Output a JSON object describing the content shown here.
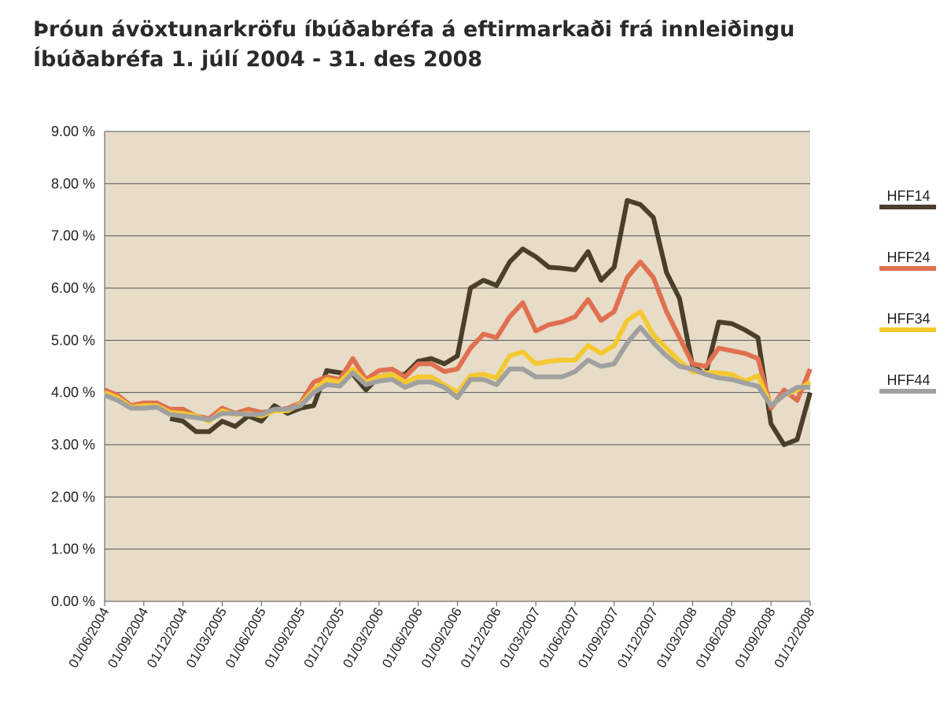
{
  "chart_data": {
    "type": "line",
    "title": [
      "Þróun ávöxtunarkröfu íbúðabréfa á eftirmarkaði frá innleiðingu",
      "Íbúðabréfa 1. júlí 2004 - 31. des 2008"
    ],
    "categories": [
      "01/06/2004",
      null,
      null,
      "01/09/2004",
      null,
      null,
      "01/12/2004",
      null,
      null,
      "01/03/2005",
      null,
      null,
      "01/06/2005",
      null,
      null,
      "01/09/2005",
      null,
      null,
      "01/12/2005",
      null,
      null,
      "01/03/2006",
      null,
      null,
      "01/06/2006",
      null,
      null,
      "01/09/2006",
      null,
      null,
      "01/12/2006",
      null,
      null,
      "01/03/2007",
      null,
      null,
      "01/06/2007",
      null,
      null,
      "01/09/2007",
      null,
      null,
      "01/12/2007",
      null,
      null,
      "01/03/2008",
      null,
      null,
      "01/06/2008",
      null,
      null,
      "01/09/2008",
      null,
      null,
      "01/12/2008"
    ],
    "series": [
      {
        "name": "HFF14",
        "color": "#4a3f2a",
        "values": [
          null,
          null,
          null,
          null,
          null,
          3.5,
          3.45,
          3.25,
          3.25,
          3.45,
          3.35,
          3.55,
          3.45,
          3.75,
          3.6,
          3.7,
          3.75,
          4.42,
          4.38,
          4.35,
          4.05,
          4.3,
          4.35,
          4.35,
          4.6,
          4.65,
          4.55,
          4.7,
          6.0,
          6.15,
          6.05,
          6.5,
          6.75,
          6.6,
          6.4,
          6.38,
          6.35,
          6.7,
          6.15,
          6.4,
          7.68,
          7.6,
          7.35,
          6.3,
          5.8,
          4.5,
          4.35,
          5.35,
          5.32,
          5.2,
          5.05,
          3.4,
          3.0,
          3.1,
          4.0
        ]
      },
      {
        "name": "HFF24",
        "color": "#e07050",
        "values": [
          4.05,
          3.95,
          3.75,
          3.8,
          3.8,
          3.68,
          3.68,
          3.55,
          3.5,
          3.7,
          3.6,
          3.68,
          3.62,
          3.65,
          3.7,
          3.8,
          4.2,
          4.3,
          4.25,
          4.65,
          4.25,
          4.42,
          4.45,
          4.3,
          4.55,
          4.55,
          4.4,
          4.45,
          4.85,
          5.12,
          5.05,
          5.45,
          5.72,
          5.18,
          5.3,
          5.35,
          5.45,
          5.78,
          5.38,
          5.55,
          6.2,
          6.5,
          6.2,
          5.55,
          5.05,
          4.55,
          4.5,
          4.85,
          4.8,
          4.75,
          4.65,
          3.7,
          4.05,
          3.85,
          4.45
        ]
      },
      {
        "name": "HFF34",
        "color": "#f5c830",
        "values": [
          4.0,
          3.9,
          3.72,
          3.75,
          3.75,
          3.62,
          3.6,
          3.55,
          3.45,
          3.65,
          3.58,
          3.6,
          3.55,
          3.65,
          3.65,
          3.78,
          4.05,
          4.25,
          4.2,
          4.45,
          4.2,
          4.3,
          4.35,
          4.2,
          4.3,
          4.3,
          4.15,
          4.0,
          4.32,
          4.35,
          4.28,
          4.7,
          4.78,
          4.55,
          4.6,
          4.62,
          4.62,
          4.9,
          4.75,
          4.9,
          5.38,
          5.55,
          5.1,
          4.85,
          4.6,
          4.4,
          4.38,
          4.38,
          4.35,
          4.22,
          4.32,
          3.75,
          3.95,
          4.05,
          4.2
        ]
      },
      {
        "name": "HFF44",
        "color": "#a0a0a0",
        "values": [
          3.95,
          3.85,
          3.7,
          3.7,
          3.72,
          3.58,
          3.55,
          3.52,
          3.48,
          3.6,
          3.6,
          3.58,
          3.58,
          3.68,
          3.68,
          3.75,
          4.0,
          4.15,
          4.12,
          4.38,
          4.15,
          4.22,
          4.25,
          4.1,
          4.2,
          4.2,
          4.1,
          3.9,
          4.25,
          4.25,
          4.15,
          4.45,
          4.45,
          4.3,
          4.3,
          4.3,
          4.4,
          4.62,
          4.5,
          4.55,
          4.95,
          5.25,
          4.95,
          4.7,
          4.5,
          4.45,
          4.35,
          4.28,
          4.25,
          4.18,
          4.12,
          3.75,
          3.95,
          4.1,
          4.1
        ]
      }
    ],
    "ylim": [
      0,
      9
    ],
    "yticks": [
      {
        "value": 0,
        "label": "0.00 %"
      },
      {
        "value": 1,
        "label": "1.00 %"
      },
      {
        "value": 2,
        "label": "2.00 %"
      },
      {
        "value": 3,
        "label": "3.00 %"
      },
      {
        "value": 4,
        "label": "4.00 %"
      },
      {
        "value": 5,
        "label": "5.00 %"
      },
      {
        "value": 6,
        "label": "6.00 %"
      },
      {
        "value": 7,
        "label": "7.00 %"
      },
      {
        "value": 8,
        "label": "8.00 %"
      },
      {
        "value": 9,
        "label": "9.00 %"
      }
    ],
    "grid": true,
    "legend": "right"
  }
}
